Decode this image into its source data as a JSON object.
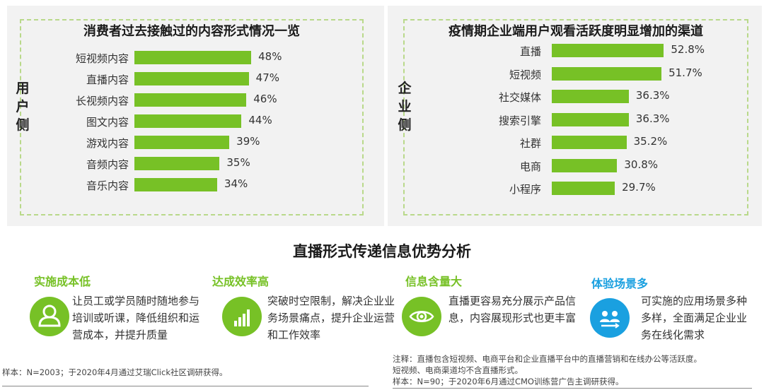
{
  "chart_data": [
    {
      "type": "bar",
      "title": "消费者过去接触过的内容形式情况一览",
      "side_label": "用户侧",
      "categories": [
        "短视频内容",
        "直播内容",
        "长视频内容",
        "图文内容",
        "游戏内容",
        "音频内容",
        "音乐内容"
      ],
      "values": [
        48,
        47,
        46,
        44,
        39,
        35,
        34
      ],
      "value_labels": [
        "48%",
        "47%",
        "46%",
        "44%",
        "39%",
        "35%",
        "34%"
      ],
      "orientation": "horizontal",
      "bar_color": "#77c126",
      "xlim": [
        0,
        55
      ]
    },
    {
      "type": "bar",
      "title": "疫情期企业端用户观看活跃度明显增加的渠道",
      "side_label": "企业侧",
      "categories": [
        "直播",
        "短视频",
        "社交媒体",
        "搜索引擎",
        "社群",
        "电商",
        "小程序"
      ],
      "values": [
        52.8,
        51.7,
        36.3,
        36.3,
        35.2,
        30.8,
        29.7
      ],
      "value_labels": [
        "52.8%",
        "51.7%",
        "36.3%",
        "36.3%",
        "35.2%",
        "30.8%",
        "29.7%"
      ],
      "orientation": "horizontal",
      "bar_color": "#77c126",
      "xlim": [
        0,
        55
      ]
    }
  ],
  "section_title": "直播形式传递信息优势分析",
  "advantages": [
    {
      "title": "实施成本低",
      "text": "让员工或学员随时随地参与培训或听课，降低组织和运营成本，并提升质量",
      "color": "#77c126",
      "icon": "people-icon"
    },
    {
      "title": "达成效率高",
      "text": "突破时空限制，解决企业业务场景痛点，提升企业运营和工作效率",
      "color": "#77c126",
      "icon": "signal-bars-icon"
    },
    {
      "title": "信息含量大",
      "text": "直播更容易充分展示产品信息，内容展现形式也更丰富",
      "color": "#77c126",
      "icon": "eye-icon"
    },
    {
      "title": "体验场景多",
      "text": "可实施的应用场景多种多样，全面满足企业业务在线化需求",
      "color": "#1aa0e0",
      "icon": "scenes-icon"
    }
  ],
  "notes": {
    "left": "样本：N=2003；于2020年4月通过艾瑞Click社区调研获得。",
    "right_1": "注释：直播包含短视频、电商平台和企业直播平台中的直播营销和在线办公等活跃度。",
    "right_2": "短视频、电商渠道均不含直播形式。",
    "right_3": "样本：N=90；于2020年6月通过CMO训练营广告主调研获得。"
  }
}
